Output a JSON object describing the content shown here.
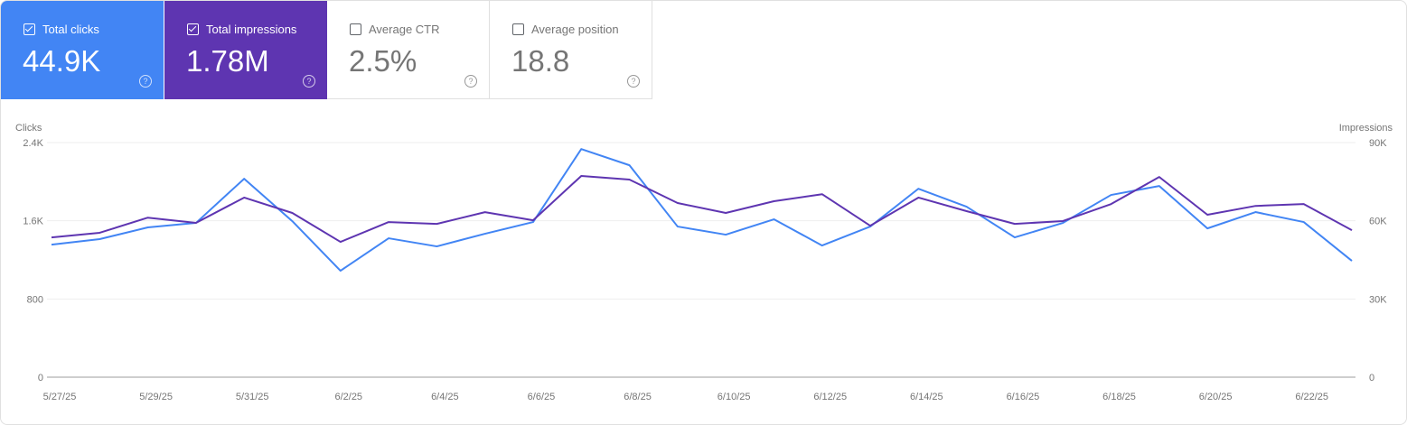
{
  "metrics": [
    {
      "label": "Total clicks",
      "value": "44.9K",
      "checked": true,
      "color": "#4285f4"
    },
    {
      "label": "Total impressions",
      "value": "1.78M",
      "checked": true,
      "color": "#5e35b1"
    },
    {
      "label": "Average CTR",
      "value": "2.5%",
      "checked": false
    },
    {
      "label": "Average position",
      "value": "18.8",
      "checked": false
    }
  ],
  "help_icon": "?",
  "chart_data": {
    "type": "line",
    "xlabel": "",
    "y_left_label": "Clicks",
    "y_right_label": "Impressions",
    "y_left_ticks": [
      "0",
      "800",
      "1.6K",
      "2.4K"
    ],
    "y_right_ticks": [
      "0",
      "30K",
      "60K",
      "90K"
    ],
    "y_left_lim": [
      0,
      2400
    ],
    "y_right_lim": [
      0,
      90000
    ],
    "grid": true,
    "x": [
      "5/27/25",
      "5/28/25",
      "5/29/25",
      "5/30/25",
      "5/31/25",
      "6/1/25",
      "6/2/25",
      "6/3/25",
      "6/4/25",
      "6/5/25",
      "6/6/25",
      "6/7/25",
      "6/8/25",
      "6/9/25",
      "6/10/25",
      "6/11/25",
      "6/12/25",
      "6/13/25",
      "6/14/25",
      "6/15/25",
      "6/16/25",
      "6/17/25",
      "6/18/25",
      "6/19/25",
      "6/20/25",
      "6/21/25",
      "6/22/25",
      "6/23/25"
    ],
    "x_tick_labels": [
      "5/27/25",
      "5/29/25",
      "5/31/25",
      "6/2/25",
      "6/4/25",
      "6/6/25",
      "6/8/25",
      "6/10/25",
      "6/12/25",
      "6/14/25",
      "6/16/25",
      "6/18/25",
      "6/20/25",
      "6/22/25"
    ],
    "series": [
      {
        "name": "Clicks",
        "axis": "left",
        "color": "#4285f4",
        "values": [
          1356,
          1412,
          1532,
          1578,
          2030,
          1596,
          1089,
          1421,
          1338,
          1467,
          1587,
          2334,
          2168,
          1541,
          1458,
          1615,
          1347,
          1541,
          1928,
          1744,
          1430,
          1578,
          1864,
          1956,
          1522,
          1689,
          1587,
          1190
        ]
      },
      {
        "name": "Impressions",
        "axis": "right",
        "color": "#5e35b1",
        "values": [
          53600,
          55400,
          61200,
          59200,
          68900,
          63000,
          51900,
          59500,
          58800,
          63300,
          60200,
          77200,
          75800,
          66800,
          63000,
          67500,
          70200,
          58100,
          68900,
          63700,
          58800,
          59900,
          66400,
          76800,
          62300,
          65700,
          66400,
          56400
        ]
      }
    ]
  }
}
